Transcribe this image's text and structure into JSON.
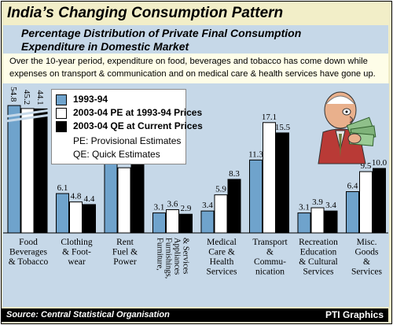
{
  "header": {
    "title": "India’s Changing Consumption Pattern",
    "subtitle_line1": "Percentage Distribution of Private Final Consumption",
    "subtitle_line2": "Expenditure in Domestic Market"
  },
  "note": {
    "line1": "Over the 10-year period, expenditure on food, beverages and tobacco has come down while",
    "line2": "expenses on transport & communication and on medical care & health services have gone up."
  },
  "legend": {
    "item1": "1993-94",
    "item2": "2003-04 PE at 1993-94 Prices",
    "item3": "2003-04 QE at Current Prices",
    "note1": "PE: Provisional Estimates",
    "note2": "QE: Quick Estimates"
  },
  "footer": {
    "source": "Source: Central Statistical Organisation",
    "credit": "PTI Graphics"
  },
  "colors": {
    "background": "#f2eec8",
    "plot_background": "#c6d8e8",
    "series_1993": "#6fa3cc",
    "series_pe": "#ffffff",
    "series_qe": "#000000"
  },
  "chart_data": {
    "type": "bar",
    "categories": [
      [
        "Food",
        "Beverages",
        "& Tobacco"
      ],
      [
        "Clothing",
        "& Foot-",
        "wear"
      ],
      [
        "Rent",
        "Fuel &",
        "Power"
      ],
      [
        "Furniture,",
        "Furnishings,",
        "Appliances",
        "& Services"
      ],
      [
        "Medical",
        "Care &",
        "Health",
        "Services"
      ],
      [
        "Transport",
        "&",
        "Commu-",
        "nication"
      ],
      [
        "Recreation",
        "Education",
        "& Cultural",
        "Services"
      ],
      [
        "Misc.",
        "Goods",
        "&",
        "Services"
      ]
    ],
    "category_rotated": [
      false,
      false,
      false,
      true,
      false,
      false,
      false,
      false
    ],
    "series": [
      {
        "name": "1993-94",
        "values": [
          54.8,
          6.1,
          11.9,
          3.1,
          3.4,
          11.3,
          3.1,
          6.4
        ],
        "labels": [
          "54.8",
          "6.1",
          "11.9",
          "3.1",
          "3.4",
          "11.3",
          "3.1",
          "6.4"
        ]
      },
      {
        "name": "2003-04 PE at 1993-94 Prices",
        "values": [
          45.2,
          4.8,
          10.1,
          3.6,
          5.9,
          17.1,
          3.9,
          9.5
        ],
        "labels": [
          "45.2",
          "4.8",
          "10.1",
          "3.6",
          "5.9",
          "17.1",
          "3.9",
          "9.5"
        ]
      },
      {
        "name": "2003-04 QE at Current Prices",
        "values": [
          44.1,
          4.4,
          11.4,
          2.9,
          8.3,
          15.5,
          3.4,
          10.0
        ],
        "labels": [
          "44.1",
          "4.4",
          "11.4",
          "2.9",
          "8.3",
          "15.5",
          "3.4",
          "10.0"
        ]
      }
    ],
    "axis_break": "broken y-axis between about 20 and 40 (first group only)",
    "ylim": [
      0,
      55
    ],
    "legend_position": "top-left inside plot",
    "grid": false
  }
}
